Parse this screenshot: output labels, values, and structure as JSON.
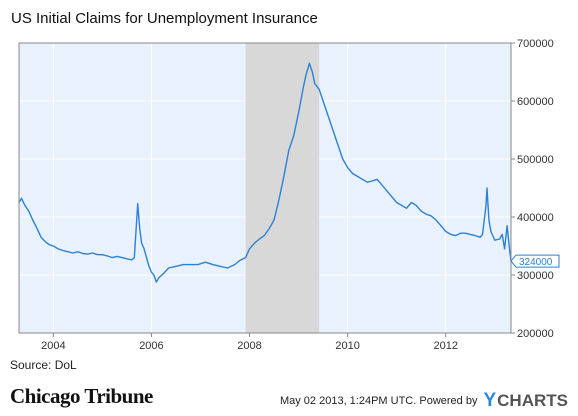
{
  "chart_data": {
    "type": "line",
    "title": "US Initial Claims for Unemployment Insurance",
    "xlim": [
      2003.3,
      2013.33
    ],
    "ylim": [
      200000,
      700000
    ],
    "x_ticks": [
      2004,
      2006,
      2008,
      2010,
      2012
    ],
    "x_tick_labels": [
      "2004",
      "2006",
      "2008",
      "2010",
      "2012"
    ],
    "y_ticks": [
      200000,
      300000,
      400000,
      500000,
      600000,
      700000
    ],
    "y_tick_labels": [
      "200000",
      "300000",
      "400000",
      "500000",
      "600000",
      "700000"
    ],
    "recession_band": [
      2007.92,
      2009.42
    ],
    "last_value_label": "324000",
    "series": [
      {
        "color": "#2a82d6",
        "points": [
          [
            2003.3,
            425000
          ],
          [
            2003.35,
            432000
          ],
          [
            2003.42,
            420000
          ],
          [
            2003.5,
            410000
          ],
          [
            2003.58,
            395000
          ],
          [
            2003.67,
            380000
          ],
          [
            2003.75,
            365000
          ],
          [
            2003.83,
            358000
          ],
          [
            2003.92,
            352000
          ],
          [
            2004.0,
            350000
          ],
          [
            2004.1,
            345000
          ],
          [
            2004.2,
            342000
          ],
          [
            2004.3,
            340000
          ],
          [
            2004.4,
            338000
          ],
          [
            2004.5,
            340000
          ],
          [
            2004.6,
            337000
          ],
          [
            2004.7,
            336000
          ],
          [
            2004.8,
            338000
          ],
          [
            2004.9,
            335000
          ],
          [
            2005.0,
            335000
          ],
          [
            2005.1,
            333000
          ],
          [
            2005.2,
            330000
          ],
          [
            2005.3,
            332000
          ],
          [
            2005.4,
            330000
          ],
          [
            2005.5,
            328000
          ],
          [
            2005.6,
            326000
          ],
          [
            2005.65,
            330000
          ],
          [
            2005.7,
            395000
          ],
          [
            2005.72,
            423000
          ],
          [
            2005.76,
            380000
          ],
          [
            2005.8,
            355000
          ],
          [
            2005.85,
            345000
          ],
          [
            2005.9,
            330000
          ],
          [
            2005.95,
            315000
          ],
          [
            2006.0,
            305000
          ],
          [
            2006.05,
            300000
          ],
          [
            2006.1,
            288000
          ],
          [
            2006.15,
            295000
          ],
          [
            2006.25,
            303000
          ],
          [
            2006.35,
            312000
          ],
          [
            2006.5,
            315000
          ],
          [
            2006.65,
            318000
          ],
          [
            2006.8,
            318000
          ],
          [
            2006.95,
            318000
          ],
          [
            2007.1,
            322000
          ],
          [
            2007.25,
            318000
          ],
          [
            2007.4,
            315000
          ],
          [
            2007.55,
            312000
          ],
          [
            2007.7,
            318000
          ],
          [
            2007.8,
            325000
          ],
          [
            2007.92,
            330000
          ],
          [
            2008.0,
            345000
          ],
          [
            2008.1,
            355000
          ],
          [
            2008.2,
            362000
          ],
          [
            2008.3,
            368000
          ],
          [
            2008.4,
            380000
          ],
          [
            2008.5,
            395000
          ],
          [
            2008.6,
            430000
          ],
          [
            2008.7,
            470000
          ],
          [
            2008.8,
            515000
          ],
          [
            2008.9,
            540000
          ],
          [
            2009.0,
            580000
          ],
          [
            2009.1,
            625000
          ],
          [
            2009.15,
            645000
          ],
          [
            2009.22,
            665000
          ],
          [
            2009.28,
            650000
          ],
          [
            2009.33,
            630000
          ],
          [
            2009.42,
            620000
          ],
          [
            2009.5,
            600000
          ],
          [
            2009.6,
            575000
          ],
          [
            2009.7,
            550000
          ],
          [
            2009.8,
            525000
          ],
          [
            2009.9,
            500000
          ],
          [
            2010.0,
            485000
          ],
          [
            2010.1,
            475000
          ],
          [
            2010.2,
            470000
          ],
          [
            2010.3,
            465000
          ],
          [
            2010.4,
            460000
          ],
          [
            2010.5,
            462000
          ],
          [
            2010.6,
            465000
          ],
          [
            2010.7,
            455000
          ],
          [
            2010.8,
            445000
          ],
          [
            2010.9,
            435000
          ],
          [
            2011.0,
            425000
          ],
          [
            2011.1,
            420000
          ],
          [
            2011.2,
            415000
          ],
          [
            2011.3,
            425000
          ],
          [
            2011.4,
            420000
          ],
          [
            2011.5,
            410000
          ],
          [
            2011.6,
            405000
          ],
          [
            2011.7,
            402000
          ],
          [
            2011.8,
            395000
          ],
          [
            2011.9,
            385000
          ],
          [
            2012.0,
            375000
          ],
          [
            2012.1,
            370000
          ],
          [
            2012.2,
            368000
          ],
          [
            2012.3,
            372000
          ],
          [
            2012.4,
            372000
          ],
          [
            2012.5,
            370000
          ],
          [
            2012.6,
            368000
          ],
          [
            2012.7,
            365000
          ],
          [
            2012.75,
            370000
          ],
          [
            2012.82,
            420000
          ],
          [
            2012.84,
            450000
          ],
          [
            2012.88,
            395000
          ],
          [
            2012.92,
            375000
          ],
          [
            2013.0,
            360000
          ],
          [
            2013.1,
            362000
          ],
          [
            2013.15,
            370000
          ],
          [
            2013.2,
            345000
          ],
          [
            2013.25,
            385000
          ],
          [
            2013.3,
            345000
          ],
          [
            2013.33,
            324000
          ]
        ]
      }
    ]
  },
  "source": "Source: DoL",
  "logo": "Chicago Tribune",
  "timestamp": "May 02 2013, 1:24PM UTC.",
  "powered_by": "Powered by",
  "brand": {
    "mark": "Y",
    "name": "CHARTS"
  }
}
